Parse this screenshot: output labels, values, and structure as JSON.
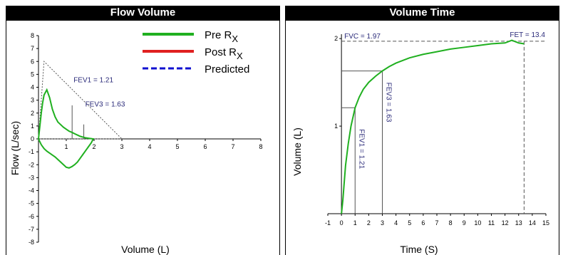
{
  "chart_data": [
    {
      "type": "line",
      "title": "Flow Volume",
      "xlabel": "Volume (L)",
      "ylabel": "Flow   (L/sec)",
      "xlim": [
        0,
        8
      ],
      "ylim": [
        -8,
        8
      ],
      "xticks": [
        "1",
        "2",
        "3",
        "4",
        "5",
        "6",
        "7",
        "8"
      ],
      "yticks": [
        "-8",
        "-7",
        "-6",
        "-5",
        "-4",
        "-3",
        "-2",
        "-1",
        "0",
        "1",
        "2",
        "3",
        "4",
        "5",
        "6",
        "7",
        "8"
      ],
      "grid": false,
      "legend": {
        "position": "top-right",
        "entries": [
          {
            "label": "Pre R",
            "sub": "X",
            "color": "#20b020",
            "style": "solid"
          },
          {
            "label": "Post R",
            "sub": "X",
            "color": "#e02020",
            "style": "solid"
          },
          {
            "label": "Predicted",
            "sub": "",
            "color": "#1010d0",
            "style": "dashed"
          }
        ]
      },
      "series": [
        {
          "name": "Pre R",
          "color": "#20b020",
          "x": [
            0,
            0.05,
            0.1,
            0.15,
            0.2,
            0.3,
            0.4,
            0.5,
            0.6,
            0.7,
            0.8,
            0.9,
            1.0,
            1.1,
            1.21,
            1.3,
            1.4,
            1.5,
            1.63,
            1.7,
            1.8,
            1.9,
            1.97,
            1.9,
            1.8,
            1.7,
            1.6,
            1.5,
            1.4,
            1.3,
            1.2,
            1.1,
            1.0,
            0.9,
            0.8,
            0.7,
            0.6,
            0.5,
            0.4,
            0.3,
            0.2,
            0.1,
            0
          ],
          "y": [
            0,
            1.0,
            2.0,
            2.8,
            3.4,
            3.8,
            3.2,
            2.3,
            1.7,
            1.3,
            1.1,
            0.9,
            0.75,
            0.6,
            0.5,
            0.4,
            0.3,
            0.2,
            0.12,
            0.08,
            0.05,
            0.02,
            0,
            -0.3,
            -0.6,
            -0.9,
            -1.2,
            -1.5,
            -1.8,
            -2.0,
            -2.15,
            -2.25,
            -2.2,
            -2.0,
            -1.8,
            -1.6,
            -1.4,
            -1.25,
            -1.1,
            -0.95,
            -0.75,
            -0.45,
            0
          ]
        }
      ],
      "predicted": {
        "x": [
          0,
          0.2,
          3.0,
          0
        ],
        "y": [
          0,
          6.0,
          0,
          0
        ]
      },
      "markers": [
        {
          "label": "FEV1 = 1.21",
          "x": 1.21
        },
        {
          "label": "FEV3 = 1.63",
          "x": 1.63
        }
      ]
    },
    {
      "type": "line",
      "title": "Volume Time",
      "xlabel": "Time (S)",
      "ylabel": "Volume (L)",
      "xlim": [
        -1,
        15
      ],
      "ylim": [
        0,
        2.05
      ],
      "xticks": [
        "-1",
        "0",
        "1",
        "2",
        "3",
        "4",
        "5",
        "6",
        "7",
        "8",
        "9",
        "10",
        "11",
        "12",
        "13",
        "14",
        "15"
      ],
      "yticks": [
        "1",
        "2"
      ],
      "grid": false,
      "series": [
        {
          "name": "Pre R",
          "color": "#20b020",
          "x": [
            0,
            0.1,
            0.2,
            0.3,
            0.5,
            0.7,
            1.0,
            1.3,
            1.6,
            2.0,
            2.5,
            3.0,
            3.5,
            4,
            5,
            6,
            7,
            8,
            9,
            10,
            11,
            12,
            12.5,
            13,
            13.4
          ],
          "y": [
            0,
            0.15,
            0.35,
            0.55,
            0.8,
            1.0,
            1.21,
            1.33,
            1.42,
            1.5,
            1.57,
            1.63,
            1.68,
            1.72,
            1.78,
            1.82,
            1.85,
            1.88,
            1.9,
            1.92,
            1.94,
            1.95,
            1.98,
            1.95,
            1.94
          ]
        }
      ],
      "annotations": {
        "fvc": {
          "label": "FVC = 1.97",
          "value": 1.97
        },
        "fet": {
          "label": "FET = 13.4",
          "value": 13.4
        },
        "fev1": {
          "label": "FEV1 = 1.21",
          "t": 1,
          "v": 1.21
        },
        "fev3": {
          "label": "FEV3 = 1.63",
          "t": 3,
          "v": 1.63
        }
      }
    }
  ]
}
